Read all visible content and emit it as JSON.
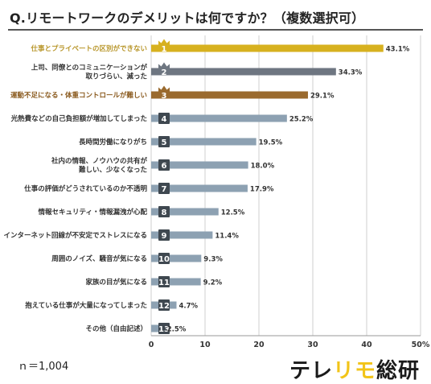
{
  "title": "Q.リモートワークのデメリットは何ですか？（複数選択可）",
  "note": "ｎ＝1,004",
  "logo": {
    "part1": "テレ",
    "part2": "リモ",
    "part3": "総研"
  },
  "colors": {
    "gold": "#d7b11f",
    "silver": "#6e7681",
    "bronze": "#9a6a2e",
    "default": "#8da1b2",
    "badge": "#3f4850",
    "rank1_label": "#b8962a",
    "rank3_label": "#8a5a1e"
  },
  "chart_data": {
    "type": "bar",
    "orientation": "horizontal",
    "unit": "%",
    "xlim": [
      0,
      50
    ],
    "xticks": [
      0,
      10,
      20,
      30,
      40,
      50
    ],
    "xtick_labels": [
      "0",
      "10",
      "20",
      "30",
      "40",
      "50%"
    ],
    "grid": true,
    "categories": [
      "仕事とプライベートの区別ができない",
      "上司、同僚とのコミュニケーションが\n取りづらい、減った",
      "運動不足になる・体重コントロールが難しい",
      "光熱費などの自己負担額が増加してしまった",
      "長時間労働になりがち",
      "社内の情報、ノウハウの共有が\n難しい、少なくなった",
      "仕事の評価がどうされているのか不透明",
      "情報セキュリティ・情報漏洩が心配",
      "インターネット回線が不安定でストレスになる",
      "周囲のノイズ、騒音が気になる",
      "家族の目が気になる",
      "抱えている仕事が大量になってしまった",
      "その他（自由記述）"
    ],
    "ranks": [
      "1",
      "2",
      "3",
      "4",
      "5",
      "6",
      "7",
      "8",
      "9",
      "10",
      "11",
      "12",
      "13"
    ],
    "values": [
      43.1,
      34.3,
      29.1,
      25.2,
      19.5,
      18.0,
      17.9,
      12.5,
      11.4,
      9.3,
      9.2,
      4.7,
      2.5
    ],
    "value_labels": [
      "43.1%",
      "34.3%",
      "29.1%",
      "25.2%",
      "19.5%",
      "18.0%",
      "17.9%",
      "12.5%",
      "11.4%",
      "9.3%",
      "9.2%",
      "4.7%",
      "2.5%"
    ]
  }
}
